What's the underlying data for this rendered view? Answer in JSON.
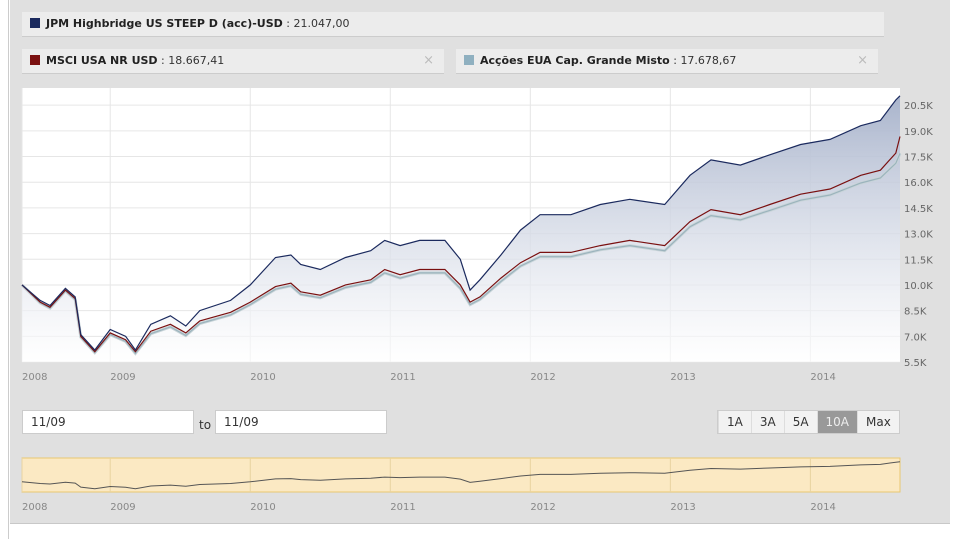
{
  "legend": [
    {
      "name": "JPM Highbridge US STEEP D (acc)-USD",
      "value": "21.047,00",
      "color": "#1b2a5e"
    },
    {
      "name": "MSCI USA NR USD",
      "value": "18.667,41",
      "color": "#7a1010"
    },
    {
      "name": "Acções EUA Cap. Grande Misto",
      "value": "17.678,67",
      "color": "#8fb0c0"
    }
  ],
  "close_label": "×",
  "date_from": "11/09",
  "to_label": "to",
  "date_to": "11/09",
  "ranges": [
    {
      "label": "1A"
    },
    {
      "label": "3A"
    },
    {
      "label": "5A"
    },
    {
      "label": "10A",
      "active": true
    },
    {
      "label": "Max"
    }
  ],
  "chart_data": {
    "type": "line",
    "title": "",
    "xlabel": "",
    "ylabel": "",
    "xlim": [
      2008.37,
      2014.64
    ],
    "ylim": [
      5500,
      21500
    ],
    "x_ticks": [
      "2008",
      "2009",
      "2010",
      "2011",
      "2012",
      "2013",
      "2014"
    ],
    "y_ticks": [
      "5.5K",
      "7.0K",
      "8.5K",
      "10.0K",
      "11.5K",
      "13.0K",
      "14.5K",
      "16.0K",
      "17.5K",
      "19.0K",
      "20.5K"
    ],
    "x": [
      2008.37,
      2008.5,
      2008.57,
      2008.68,
      2008.75,
      2008.79,
      2008.89,
      2009,
      2009.11,
      2009.18,
      2009.29,
      2009.43,
      2009.54,
      2009.64,
      2009.86,
      2010,
      2010.18,
      2010.29,
      2010.36,
      2010.5,
      2010.68,
      2010.86,
      2010.96,
      2011.07,
      2011.21,
      2011.39,
      2011.5,
      2011.57,
      2011.64,
      2011.79,
      2011.93,
      2012.07,
      2012.29,
      2012.5,
      2012.71,
      2012.96,
      2013.14,
      2013.29,
      2013.5,
      2013.71,
      2013.93,
      2014.14,
      2014.36,
      2014.5,
      2014.61,
      2014.64
    ],
    "series": [
      {
        "name": "JPM Highbridge US STEEP D (acc)-USD",
        "values": [
          10000,
          9100,
          8800,
          9800,
          9300,
          7100,
          6200,
          7400,
          7000,
          6200,
          7700,
          8200,
          7600,
          8500,
          9100,
          10000,
          11600,
          11750,
          11200,
          10900,
          11600,
          12000,
          12600,
          12300,
          12600,
          12600,
          11500,
          9700,
          10300,
          11750,
          13200,
          14100,
          14100,
          14700,
          15000,
          14700,
          16400,
          17300,
          17000,
          17600,
          18200,
          18500,
          19300,
          19600,
          20800,
          21047
        ]
      },
      {
        "name": "MSCI USA NR USD",
        "values": [
          10000,
          9000,
          8700,
          9700,
          9200,
          7000,
          6100,
          7200,
          6800,
          6100,
          7300,
          7700,
          7200,
          7900,
          8400,
          9000,
          9900,
          10100,
          9600,
          9400,
          10000,
          10300,
          10900,
          10600,
          10900,
          10900,
          10000,
          9000,
          9300,
          10400,
          11300,
          11900,
          11900,
          12300,
          12600,
          12300,
          13700,
          14400,
          14100,
          14700,
          15300,
          15600,
          16400,
          16700,
          17700,
          18667
        ]
      },
      {
        "name": "Acções EUA Cap. Grande Misto",
        "values": [
          10000,
          8950,
          8650,
          9650,
          9150,
          6950,
          6050,
          7100,
          6700,
          6000,
          7150,
          7550,
          7050,
          7750,
          8250,
          8850,
          9750,
          9950,
          9450,
          9250,
          9850,
          10150,
          10700,
          10400,
          10700,
          10700,
          9800,
          8850,
          9150,
          10200,
          11100,
          11650,
          11650,
          12050,
          12300,
          12000,
          13400,
          14050,
          13800,
          14350,
          14950,
          15250,
          15950,
          16250,
          17100,
          17679
        ]
      }
    ]
  }
}
